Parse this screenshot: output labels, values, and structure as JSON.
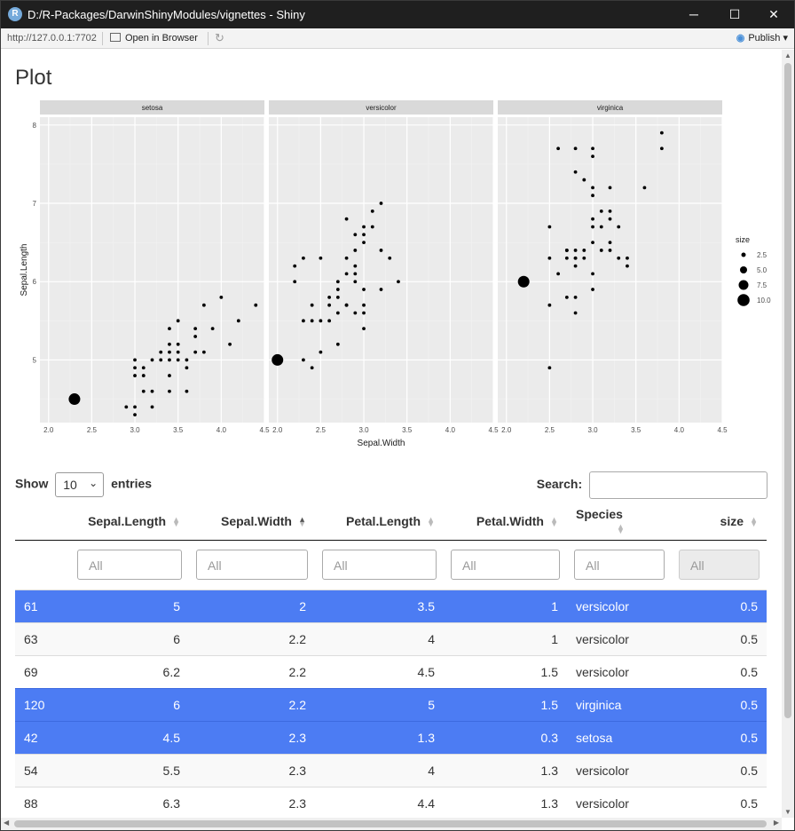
{
  "window": {
    "title": "D:/R-Packages/DarwinShinyModules/vignettes - Shiny",
    "logo_letter": "R",
    "minimize_icon": "─",
    "maximize_icon": "☐",
    "close_icon": "✕"
  },
  "toolbar": {
    "url": "http://127.0.0.1:7702",
    "open_browser_label": "Open in Browser",
    "refresh_icon": "↻",
    "publish_label": "Publish",
    "publish_icon": "◉",
    "publish_dropdown_icon": "▾"
  },
  "page": {
    "title": "Plot"
  },
  "chart_data": {
    "type": "scatter",
    "facets": [
      "setosa",
      "versicolor",
      "virginica"
    ],
    "xlabel": "Sepal.Width",
    "ylabel": "Sepal.Length",
    "xlim": [
      1.9,
      4.5
    ],
    "ylim": [
      4.2,
      8.1
    ],
    "x_ticks": [
      "2.0",
      "2.5",
      "3.0",
      "3.5",
      "4.0",
      "4.5"
    ],
    "y_ticks": [
      "5",
      "6",
      "7",
      "8"
    ],
    "legend": {
      "title": "size",
      "position": "right",
      "entries": [
        {
          "label": "2.5",
          "size": 2.5
        },
        {
          "label": "5.0",
          "size": 5.0
        },
        {
          "label": "7.5",
          "size": 7.5
        },
        {
          "label": "10.0",
          "size": 10.0
        }
      ]
    },
    "point_color": "#000000",
    "panel_background": "#ebebeb",
    "strip_background": "#d9d9d9",
    "series": [
      {
        "facet": "setosa",
        "highlight": {
          "x": 2.3,
          "y": 4.5
        },
        "points": [
          [
            3.0,
            4.3
          ],
          [
            2.9,
            4.4
          ],
          [
            3.0,
            4.4
          ],
          [
            3.2,
            4.4
          ],
          [
            3.1,
            4.6
          ],
          [
            3.2,
            4.6
          ],
          [
            3.4,
            4.6
          ],
          [
            3.6,
            4.6
          ],
          [
            3.0,
            4.8
          ],
          [
            3.1,
            4.8
          ],
          [
            3.4,
            4.8
          ],
          [
            3.0,
            4.9
          ],
          [
            3.1,
            4.9
          ],
          [
            3.6,
            4.9
          ],
          [
            3.0,
            5.0
          ],
          [
            3.2,
            5.0
          ],
          [
            3.3,
            5.0
          ],
          [
            3.4,
            5.0
          ],
          [
            3.5,
            5.0
          ],
          [
            3.6,
            5.0
          ],
          [
            3.3,
            5.1
          ],
          [
            3.4,
            5.1
          ],
          [
            3.5,
            5.1
          ],
          [
            3.7,
            5.1
          ],
          [
            3.8,
            5.1
          ],
          [
            3.4,
            5.2
          ],
          [
            3.5,
            5.2
          ],
          [
            4.1,
            5.2
          ],
          [
            3.7,
            5.3
          ],
          [
            3.4,
            5.4
          ],
          [
            3.7,
            5.4
          ],
          [
            3.9,
            5.4
          ],
          [
            3.5,
            5.5
          ],
          [
            4.2,
            5.5
          ],
          [
            3.8,
            5.7
          ],
          [
            4.4,
            5.7
          ],
          [
            4.0,
            5.8
          ]
        ]
      },
      {
        "facet": "versicolor",
        "highlight": {
          "x": 2.0,
          "y": 5.0
        },
        "points": [
          [
            2.4,
            4.9
          ],
          [
            2.3,
            5.0
          ],
          [
            2.4,
            5.5
          ],
          [
            2.3,
            5.5
          ],
          [
            2.5,
            5.5
          ],
          [
            2.6,
            5.5
          ],
          [
            2.5,
            5.1
          ],
          [
            2.7,
            5.2
          ],
          [
            2.7,
            5.6
          ],
          [
            2.6,
            5.7
          ],
          [
            2.7,
            5.8
          ],
          [
            2.2,
            6.0
          ],
          [
            2.3,
            6.3
          ],
          [
            2.5,
            6.3
          ],
          [
            2.2,
            6.2
          ],
          [
            2.9,
            5.6
          ],
          [
            3.0,
            5.4
          ],
          [
            2.8,
            5.7
          ],
          [
            2.7,
            6.0
          ],
          [
            2.8,
            6.1
          ],
          [
            2.8,
            6.3
          ],
          [
            2.9,
            6.0
          ],
          [
            2.9,
            6.1
          ],
          [
            2.9,
            6.2
          ],
          [
            2.9,
            6.4
          ],
          [
            2.9,
            6.6
          ],
          [
            3.0,
            6.5
          ],
          [
            3.0,
            6.6
          ],
          [
            3.0,
            6.7
          ],
          [
            3.1,
            6.7
          ],
          [
            2.8,
            6.8
          ],
          [
            3.1,
            6.9
          ],
          [
            3.2,
            7.0
          ],
          [
            2.6,
            5.8
          ],
          [
            2.7,
            5.9
          ],
          [
            3.0,
            5.9
          ],
          [
            3.0,
            5.6
          ],
          [
            3.2,
            6.4
          ],
          [
            3.3,
            6.3
          ],
          [
            3.4,
            6.0
          ],
          [
            3.2,
            5.9
          ],
          [
            2.4,
            5.7
          ],
          [
            2.8,
            5.7
          ],
          [
            3.0,
            5.7
          ]
        ]
      },
      {
        "facet": "virginica",
        "highlight": {
          "x": 2.2,
          "y": 6.0
        },
        "points": [
          [
            2.5,
            4.9
          ],
          [
            2.5,
            5.7
          ],
          [
            2.8,
            5.6
          ],
          [
            2.5,
            6.3
          ],
          [
            2.5,
            6.7
          ],
          [
            2.6,
            6.1
          ],
          [
            2.7,
            5.8
          ],
          [
            2.7,
            6.3
          ],
          [
            2.7,
            6.4
          ],
          [
            2.8,
            5.8
          ],
          [
            2.8,
            6.2
          ],
          [
            2.8,
            6.3
          ],
          [
            2.8,
            6.4
          ],
          [
            2.9,
            6.3
          ],
          [
            2.9,
            6.4
          ],
          [
            3.0,
            5.9
          ],
          [
            3.0,
            6.1
          ],
          [
            3.0,
            6.5
          ],
          [
            3.0,
            6.7
          ],
          [
            3.0,
            7.1
          ],
          [
            3.0,
            7.2
          ],
          [
            3.1,
            6.4
          ],
          [
            3.1,
            6.9
          ],
          [
            3.2,
            6.4
          ],
          [
            3.2,
            6.5
          ],
          [
            3.2,
            6.8
          ],
          [
            3.2,
            7.2
          ],
          [
            3.3,
            6.3
          ],
          [
            3.3,
            6.7
          ],
          [
            3.4,
            6.2
          ],
          [
            3.4,
            6.3
          ],
          [
            3.6,
            7.2
          ],
          [
            3.8,
            7.7
          ],
          [
            3.8,
            7.9
          ],
          [
            2.6,
            7.7
          ],
          [
            2.8,
            7.7
          ],
          [
            3.0,
            7.6
          ],
          [
            3.0,
            7.7
          ],
          [
            2.8,
            7.4
          ],
          [
            2.9,
            7.3
          ],
          [
            3.1,
            6.7
          ],
          [
            2.7,
            6.4
          ],
          [
            3.0,
            6.8
          ],
          [
            3.2,
            6.9
          ],
          [
            2.8,
            6.3
          ]
        ]
      }
    ]
  },
  "table": {
    "show_label": "Show",
    "entries_label": "entries",
    "length_value": "10",
    "search_label": "Search:",
    "columns": [
      {
        "label": "",
        "align": "left"
      },
      {
        "label": "Sepal.Length",
        "align": "right"
      },
      {
        "label": "Sepal.Width",
        "align": "right"
      },
      {
        "label": "Petal.Length",
        "align": "right"
      },
      {
        "label": "Petal.Width",
        "align": "right"
      },
      {
        "label": "Species",
        "align": "left"
      },
      {
        "label": "size",
        "align": "right"
      }
    ],
    "filter_placeholder": "All",
    "rows": [
      {
        "id": "61",
        "sl": "5",
        "sw": "2",
        "pl": "3.5",
        "pw": "1",
        "species": "versicolor",
        "size": "0.5",
        "selected": true
      },
      {
        "id": "63",
        "sl": "6",
        "sw": "2.2",
        "pl": "4",
        "pw": "1",
        "species": "versicolor",
        "size": "0.5",
        "selected": false
      },
      {
        "id": "69",
        "sl": "6.2",
        "sw": "2.2",
        "pl": "4.5",
        "pw": "1.5",
        "species": "versicolor",
        "size": "0.5",
        "selected": false
      },
      {
        "id": "120",
        "sl": "6",
        "sw": "2.2",
        "pl": "5",
        "pw": "1.5",
        "species": "virginica",
        "size": "0.5",
        "selected": true
      },
      {
        "id": "42",
        "sl": "4.5",
        "sw": "2.3",
        "pl": "1.3",
        "pw": "0.3",
        "species": "setosa",
        "size": "0.5",
        "selected": true
      },
      {
        "id": "54",
        "sl": "5.5",
        "sw": "2.3",
        "pl": "4",
        "pw": "1.3",
        "species": "versicolor",
        "size": "0.5",
        "selected": false
      },
      {
        "id": "88",
        "sl": "6.3",
        "sw": "2.3",
        "pl": "4.4",
        "pw": "1.3",
        "species": "versicolor",
        "size": "0.5",
        "selected": false
      }
    ],
    "selected_color": "#4c7cf3"
  }
}
